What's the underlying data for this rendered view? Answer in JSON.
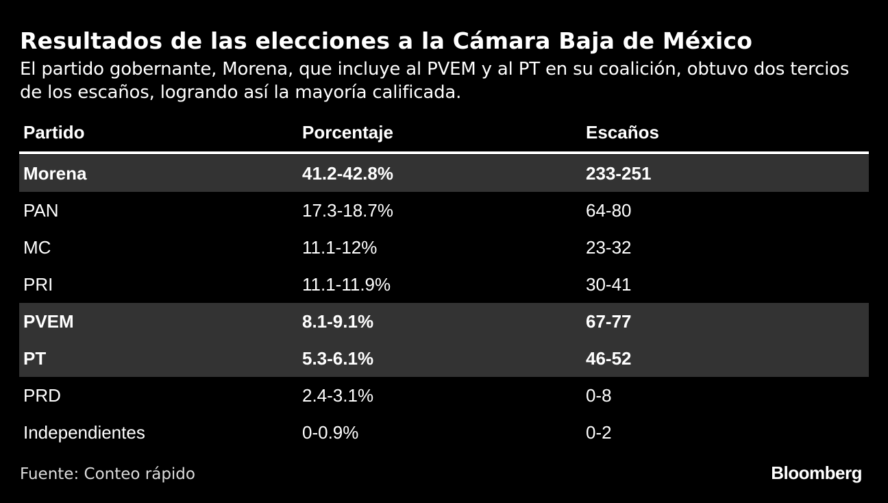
{
  "title": "Resultados de las elecciones a la Cámara Baja de México",
  "subtitle": "El partido gobernante, Morena, que incluye al PVEM y al PT en su coalición, obtuvo dos tercios de los escaños, logrando así la mayoría calificada.",
  "source": "Fuente: Conteo rápido",
  "brand": "Bloomberg",
  "colors": {
    "background": "#000000",
    "text": "#ffffff",
    "highlight_row": "#333333"
  },
  "chart_data": {
    "type": "table",
    "title": "Resultados de las elecciones a la Cámara Baja de México",
    "columns": [
      "Partido",
      "Porcentaje",
      "Escaños"
    ],
    "rows": [
      {
        "partido": "Morena",
        "porcentaje": "41.2-42.8%",
        "escanos": "233-251",
        "highlight": true
      },
      {
        "partido": "PAN",
        "porcentaje": "17.3-18.7%",
        "escanos": "64-80",
        "highlight": false
      },
      {
        "partido": "MC",
        "porcentaje": "11.1-12%",
        "escanos": "23-32",
        "highlight": false
      },
      {
        "partido": "PRI",
        "porcentaje": "11.1-11.9%",
        "escanos": "30-41",
        "highlight": false
      },
      {
        "partido": "PVEM",
        "porcentaje": "8.1-9.1%",
        "escanos": "67-77",
        "highlight": true
      },
      {
        "partido": "PT",
        "porcentaje": "5.3-6.1%",
        "escanos": "46-52",
        "highlight": true
      },
      {
        "partido": "PRD",
        "porcentaje": "2.4-3.1%",
        "escanos": "0-8",
        "highlight": false
      },
      {
        "partido": "Independientes",
        "porcentaje": "0-0.9%",
        "escanos": "0-2",
        "highlight": false
      }
    ]
  }
}
